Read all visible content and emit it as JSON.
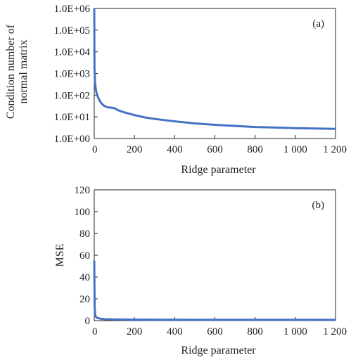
{
  "chart_data": [
    {
      "type": "line",
      "panel_label": "(a)",
      "xlabel": "Ridge parameter",
      "ylabel": [
        "Condition number of",
        "normal matrix"
      ],
      "xlim": [
        0,
        1200
      ],
      "ylim": [
        1,
        1000000
      ],
      "yscale": "log",
      "xticks": [
        0,
        200,
        400,
        600,
        800,
        1000,
        1200
      ],
      "xtick_labels": [
        "0",
        "200",
        "400",
        "600",
        "800",
        "1 000",
        "1 200"
      ],
      "yticks": [
        1,
        10,
        100,
        1000,
        10000,
        100000,
        1000000
      ],
      "ytick_labels": [
        "1.0E+00",
        "1.0E+01",
        "1.0E+02",
        "1.0E+03",
        "1.0E+04",
        "1.0E+05",
        "1.0E+06"
      ],
      "color": "#4472c4",
      "series": [
        {
          "x": [
            0,
            1,
            2,
            4,
            6,
            10,
            15,
            20,
            30,
            40,
            50,
            60,
            70,
            80,
            90,
            100,
            120,
            150,
            200,
            250,
            300,
            400,
            500,
            600,
            700,
            800,
            900,
            1000,
            1100,
            1200
          ],
          "y": [
            1000000,
            2000,
            900,
            400,
            250,
            140,
            100,
            75,
            50,
            38,
            32,
            29,
            27,
            27,
            26,
            25,
            20,
            16,
            12,
            9.5,
            8,
            6.2,
            5,
            4.3,
            3.8,
            3.4,
            3.2,
            3.0,
            2.9,
            2.8
          ]
        }
      ]
    },
    {
      "type": "line",
      "panel_label": "(b)",
      "xlabel": "Ridge parameter",
      "ylabel": [
        "MSE"
      ],
      "xlim": [
        0,
        1200
      ],
      "ylim": [
        0,
        120
      ],
      "xticks": [
        0,
        200,
        400,
        600,
        800,
        1000,
        1200
      ],
      "xtick_labels": [
        "0",
        "200",
        "400",
        "600",
        "800",
        "1 000",
        "1 200"
      ],
      "yticks": [
        0,
        20,
        40,
        60,
        80,
        100,
        120
      ],
      "ytick_labels": [
        "0",
        "20",
        "40",
        "60",
        "80",
        "100",
        "120"
      ],
      "color": "#4472c4",
      "series": [
        {
          "x": [
            0,
            2,
            5,
            10,
            20,
            30,
            50,
            100,
            200,
            400,
            600,
            800,
            1000,
            1200
          ],
          "y": [
            55,
            12,
            5,
            3,
            2.2,
            1.8,
            1.4,
            1.1,
            0.9,
            0.8,
            0.75,
            0.7,
            0.7,
            0.7
          ]
        }
      ]
    }
  ]
}
